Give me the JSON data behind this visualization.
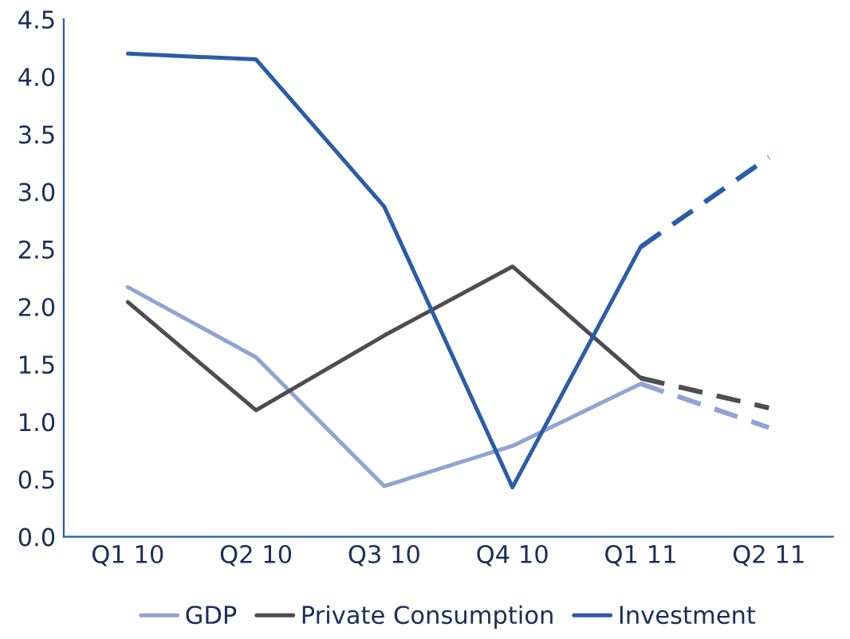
{
  "chart_data": {
    "type": "line",
    "categories": [
      "Q1 10",
      "Q2 10",
      "Q3 10",
      "Q4 10",
      "Q1 11",
      "Q2 11"
    ],
    "series": [
      {
        "name": "GDP",
        "color": "#8fa3d4",
        "values": [
          2.17,
          1.56,
          0.44,
          0.79,
          1.33,
          null
        ]
      },
      {
        "name": "Private Consumption",
        "color": "#4d4d4f",
        "values": [
          2.04,
          1.1,
          1.75,
          2.35,
          1.38,
          null
        ]
      },
      {
        "name": "Investment",
        "color": "#2a5caa",
        "values": [
          4.2,
          4.15,
          2.87,
          0.43,
          2.52,
          null
        ]
      },
      {
        "color": "#8fa3d4",
        "line_style": "dashed",
        "values": [
          null,
          null,
          null,
          null,
          1.33,
          0.95
        ]
      },
      {
        "color": "#4d4d4f",
        "line_style": "dashed",
        "values": [
          null,
          null,
          null,
          null,
          1.38,
          1.12
        ]
      },
      {
        "color": "#2a5caa",
        "line_style": "dashed",
        "values": [
          null,
          null,
          null,
          null,
          2.52,
          3.3
        ]
      }
    ],
    "ylim": [
      0,
      4.5
    ],
    "yticks": [
      {
        "value": 0,
        "label": "0.0"
      },
      {
        "value": 0.5,
        "label": "0.5"
      },
      {
        "value": 1,
        "label": "1.0"
      },
      {
        "value": 1.5,
        "label": "1.5"
      },
      {
        "value": 2,
        "label": "2.0"
      },
      {
        "value": 2.5,
        "label": "2.5"
      },
      {
        "value": 3,
        "label": "3.0"
      },
      {
        "value": 3.5,
        "label": "3.5"
      },
      {
        "value": 4,
        "label": "4.0"
      },
      {
        "value": 4.5,
        "label": "4.5"
      }
    ],
    "grid": false,
    "legend": "bottom",
    "marker": "none",
    "line_style": "solid"
  }
}
